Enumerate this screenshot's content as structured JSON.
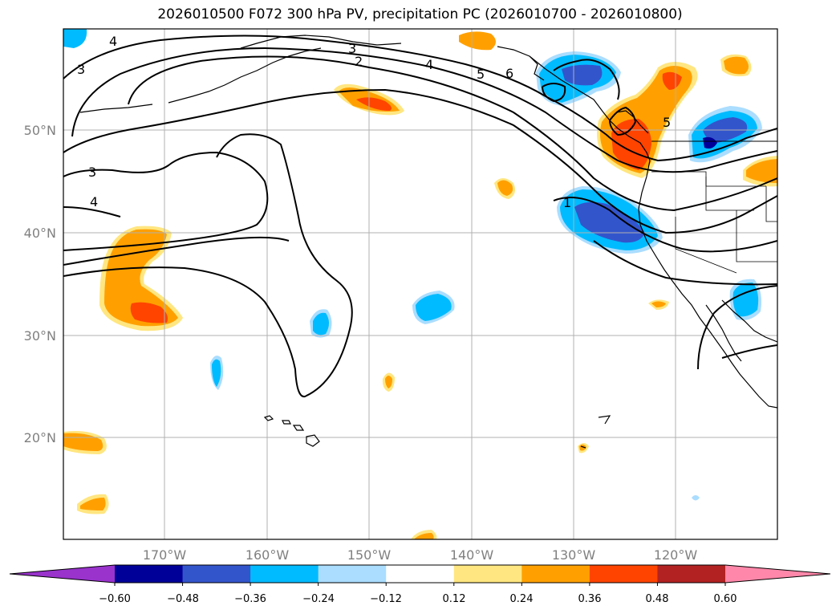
{
  "title": "2026010500 F072 300 hPa PV, precipitation PC (2026010700 - 2026010800)",
  "axes": {
    "lat_labels": [
      "50°N",
      "40°N",
      "30°N",
      "20°N"
    ],
    "lon_labels": [
      "170°W",
      "160°W",
      "150°W",
      "140°W",
      "130°W",
      "120°W"
    ]
  },
  "pv_contour_labels": [
    "4",
    "3",
    "3",
    "2",
    "4",
    "5",
    "6",
    "3",
    "4",
    "1",
    "5"
  ],
  "colorbar": {
    "colors": [
      "#9933cc",
      "#000099",
      "#3355cc",
      "#00bbff",
      "#aaddff",
      "#ffffff",
      "#ffe680",
      "#ffa000",
      "#ff4400",
      "#b22222",
      "#ff88aa"
    ],
    "tick_labels": [
      "−0.60",
      "−0.48",
      "−0.36",
      "−0.24",
      "−0.12",
      "0.12",
      "0.24",
      "0.36",
      "0.48",
      "0.60"
    ]
  }
}
